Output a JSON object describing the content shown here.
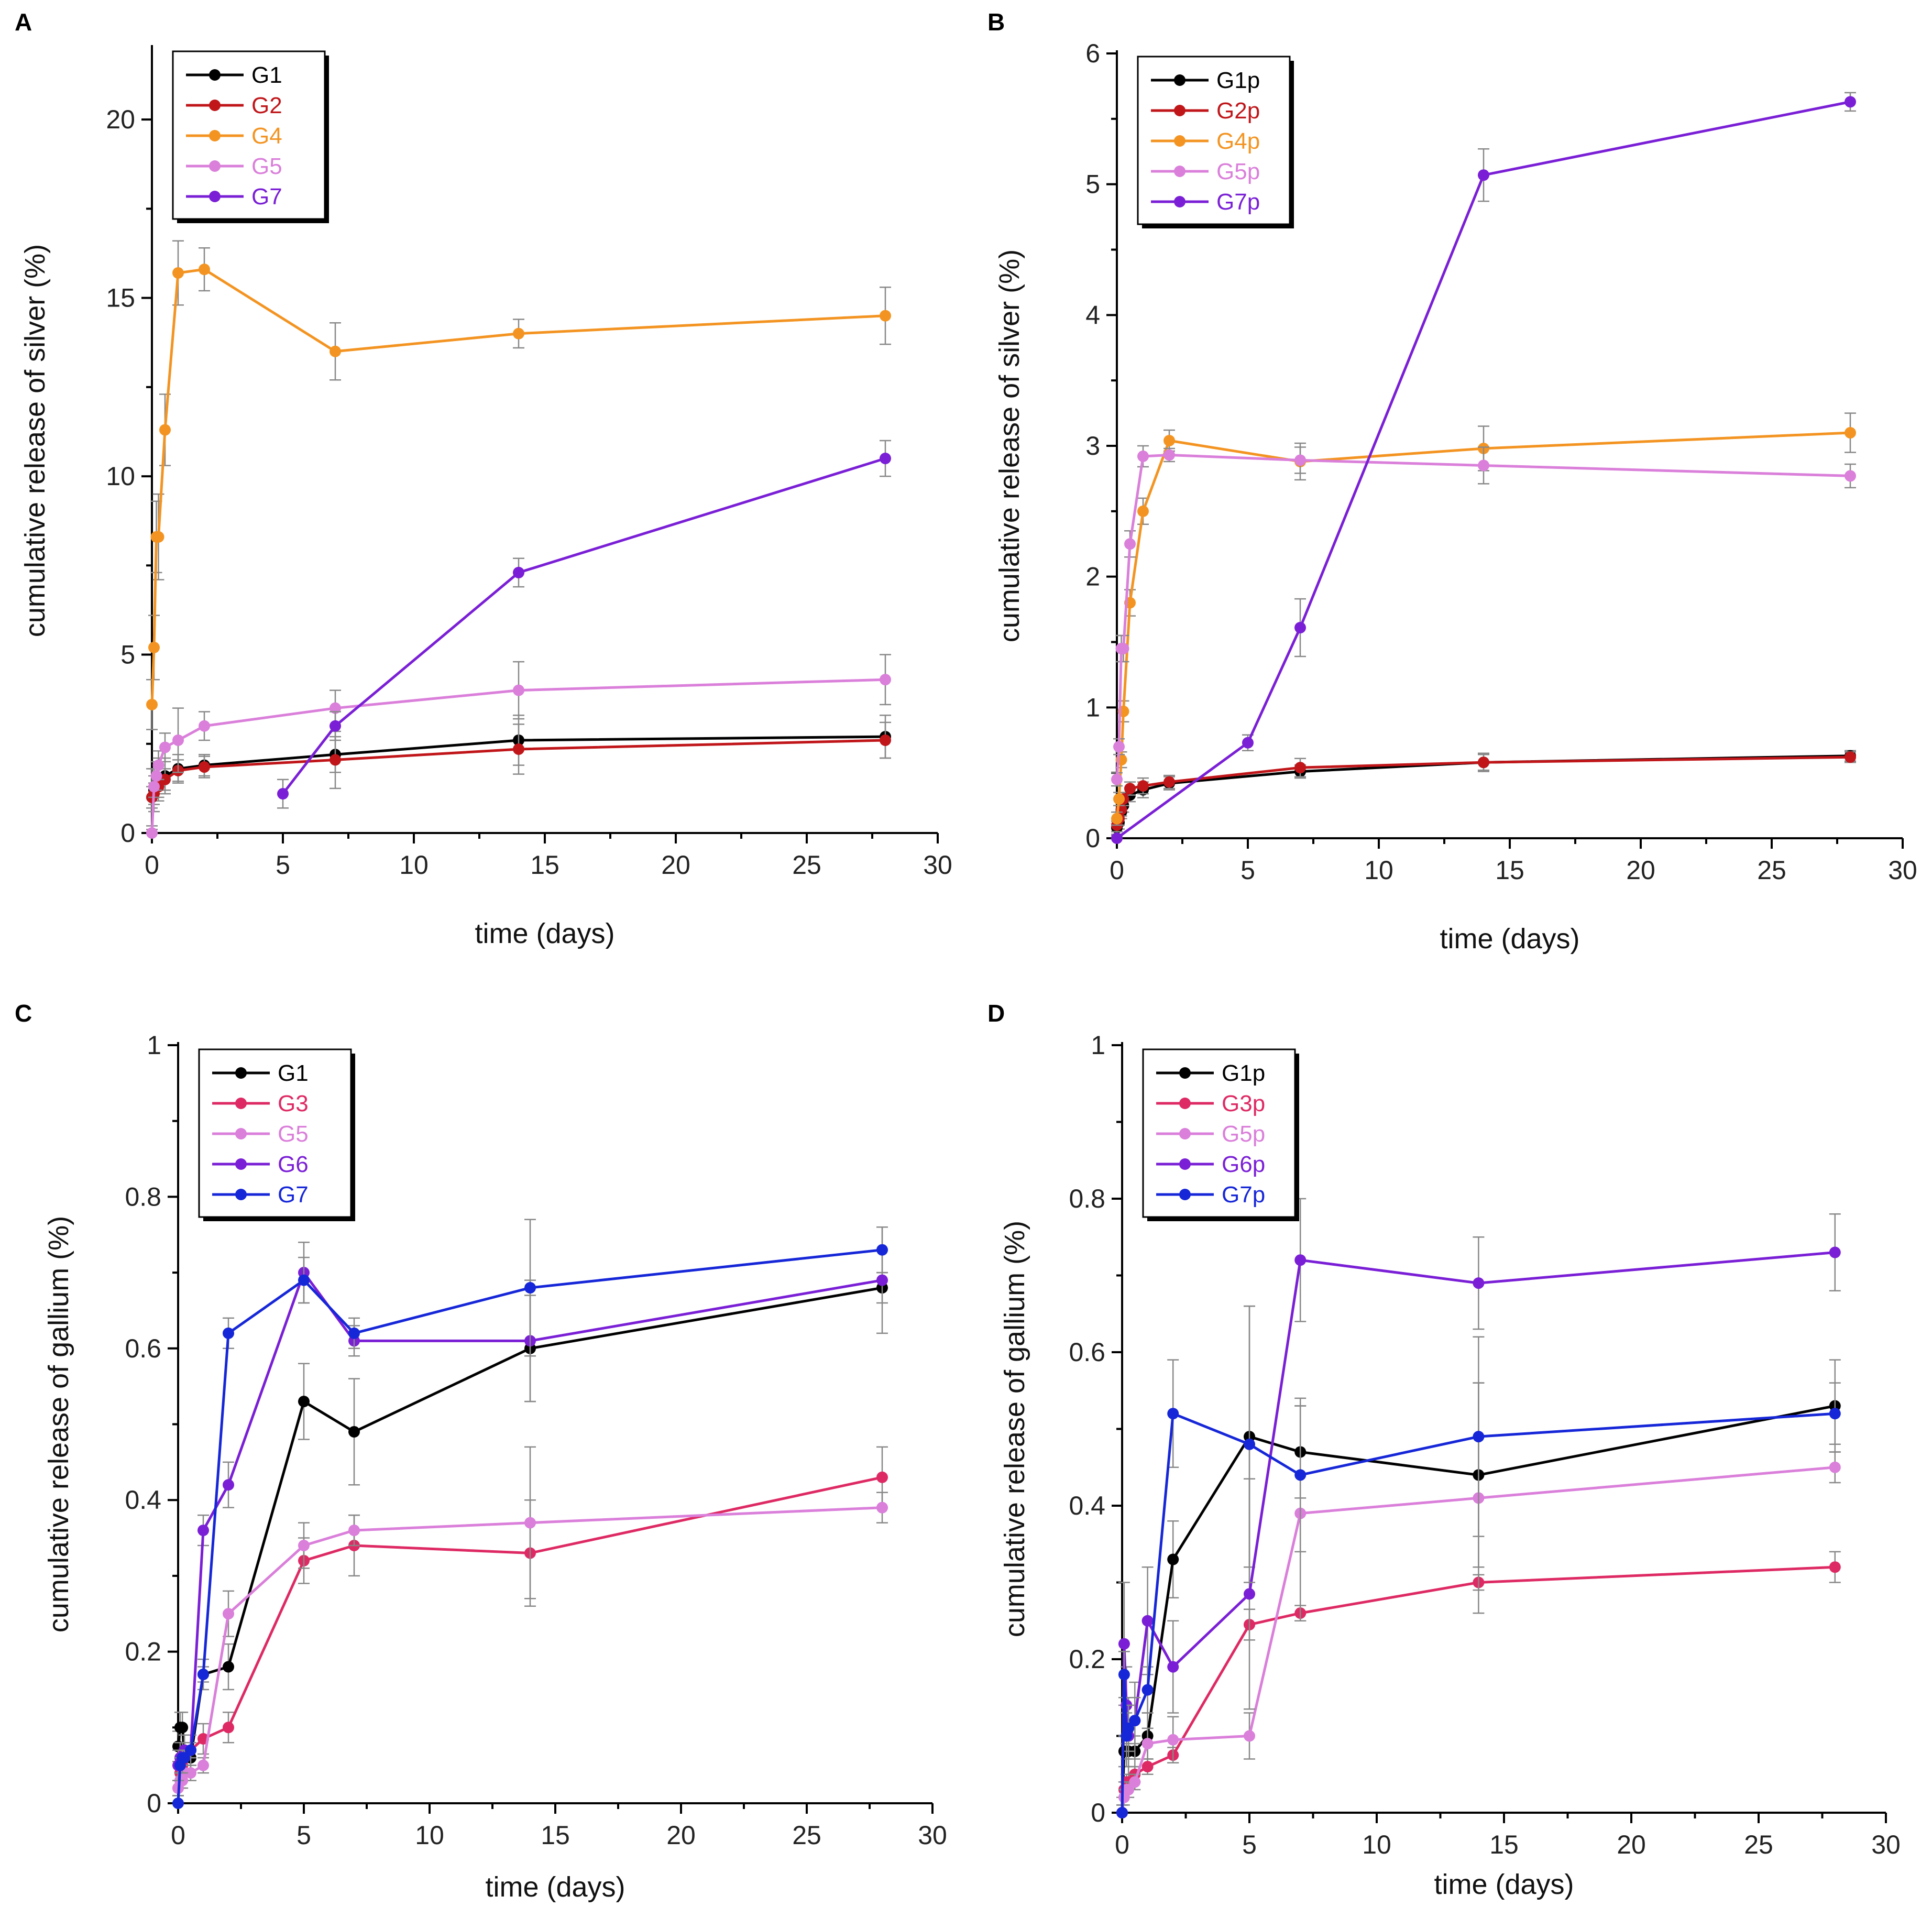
{
  "chart_data": [
    {
      "panel": "A",
      "type": "line",
      "xlabel": "time (days)",
      "ylabel": "cumulative release of silver (%)",
      "xlim": [
        0,
        30
      ],
      "ylim": [
        0,
        22
      ],
      "xticks": [
        0,
        5,
        10,
        15,
        20,
        25,
        30
      ],
      "yticks": [
        0,
        5,
        10,
        15,
        20
      ],
      "legend": "top-left",
      "series": [
        {
          "name": "G1",
          "color": "#000000",
          "x": [
            0,
            0.08,
            0.25,
            0.5,
            1,
            2,
            7,
            14,
            28
          ],
          "y": [
            1.0,
            1.2,
            1.5,
            1.6,
            1.8,
            1.9,
            2.2,
            2.6,
            2.7
          ],
          "err": [
            0.8,
            0.6,
            0.6,
            0.5,
            0.4,
            0.3,
            0.5,
            0.7,
            0.6
          ]
        },
        {
          "name": "G2",
          "color": "#c0161a",
          "x": [
            0,
            0.08,
            0.25,
            0.5,
            1,
            2,
            7,
            14,
            28
          ],
          "y": [
            1.0,
            1.1,
            1.3,
            1.5,
            1.75,
            1.85,
            2.05,
            2.35,
            2.6
          ],
          "err": [
            0.3,
            0.3,
            0.3,
            0.3,
            0.3,
            0.3,
            0.8,
            0.7,
            0.5
          ]
        },
        {
          "name": "G4",
          "color": "#f39422",
          "x": [
            0,
            0.08,
            0.17,
            0.25,
            0.5,
            1,
            2,
            7,
            14,
            28
          ],
          "y": [
            3.6,
            5.2,
            8.3,
            8.3,
            11.3,
            15.7,
            15.8,
            13.5,
            14.0,
            14.5
          ],
          "err": [
            0.7,
            0.9,
            1.0,
            1.2,
            1.0,
            0.9,
            0.6,
            0.8,
            0.4,
            0.8
          ]
        },
        {
          "name": "G5",
          "color": "#da7fda",
          "x": [
            0,
            0.08,
            0.17,
            0.25,
            0.5,
            1,
            2,
            7,
            14,
            28
          ],
          "y": [
            0.0,
            1.3,
            1.6,
            1.9,
            2.4,
            2.6,
            3.0,
            3.5,
            4.0,
            4.3
          ],
          "err": [
            0.1,
            0.3,
            0.4,
            0.4,
            0.4,
            0.9,
            0.4,
            0.5,
            0.8,
            0.7
          ]
        },
        {
          "name": "G7",
          "color": "#7a1fd6",
          "x": [
            5,
            7,
            14,
            28
          ],
          "y": [
            1.1,
            3.0,
            7.3,
            10.5
          ],
          "err": [
            0.4,
            0.4,
            0.4,
            0.5
          ]
        }
      ]
    },
    {
      "panel": "B",
      "type": "line",
      "xlabel": "time (days)",
      "ylabel": "cumulative release of silver (%)",
      "xlim": [
        0,
        30
      ],
      "ylim": [
        0,
        6
      ],
      "xticks": [
        0,
        5,
        10,
        15,
        20,
        25,
        30
      ],
      "yticks": [
        0,
        1,
        2,
        3,
        4,
        5,
        6
      ],
      "legend": "top-left",
      "series": [
        {
          "name": "G1p",
          "color": "#000000",
          "x": [
            0,
            0.08,
            0.17,
            0.25,
            0.5,
            1,
            2,
            7,
            14,
            28
          ],
          "y": [
            0.08,
            0.12,
            0.2,
            0.25,
            0.33,
            0.37,
            0.42,
            0.51,
            0.58,
            0.63
          ],
          "err": [
            0.05,
            0.05,
            0.05,
            0.05,
            0.05,
            0.06,
            0.05,
            0.05,
            0.06,
            0.04
          ]
        },
        {
          "name": "G2p",
          "color": "#c0161a",
          "x": [
            0,
            0.08,
            0.17,
            0.25,
            0.5,
            1,
            2,
            7,
            14,
            28
          ],
          "y": [
            0.1,
            0.15,
            0.22,
            0.3,
            0.38,
            0.4,
            0.43,
            0.54,
            0.58,
            0.62
          ],
          "err": [
            0.05,
            0.05,
            0.05,
            0.05,
            0.05,
            0.06,
            0.05,
            0.07,
            0.07,
            0.04
          ]
        },
        {
          "name": "G4p",
          "color": "#f39422",
          "x": [
            0,
            0.08,
            0.17,
            0.25,
            0.5,
            1,
            2,
            7,
            14,
            28
          ],
          "y": [
            0.15,
            0.3,
            0.6,
            0.97,
            1.8,
            2.5,
            3.04,
            2.88,
            2.98,
            3.1
          ],
          "err": [
            0.05,
            0.05,
            0.06,
            0.08,
            0.1,
            0.1,
            0.08,
            0.14,
            0.17,
            0.15
          ]
        },
        {
          "name": "G5p",
          "color": "#da7fda",
          "x": [
            0,
            0.08,
            0.17,
            0.25,
            0.5,
            1,
            2,
            7,
            14,
            28
          ],
          "y": [
            0.45,
            0.7,
            1.45,
            1.45,
            2.25,
            2.92,
            2.93,
            2.89,
            2.85,
            2.77
          ],
          "err": [
            0.05,
            0.06,
            0.1,
            0.1,
            0.1,
            0.08,
            0.05,
            0.1,
            0.14,
            0.09
          ]
        },
        {
          "name": "G7p",
          "color": "#7a1fd6",
          "x": [
            0,
            5,
            7,
            14,
            28
          ],
          "y": [
            0.0,
            0.73,
            1.61,
            5.07,
            5.63
          ],
          "err": [
            0.02,
            0.06,
            0.22,
            0.2,
            0.07
          ]
        }
      ]
    },
    {
      "panel": "C",
      "type": "line",
      "xlabel": "time (days)",
      "ylabel": "cumulative release of gallium (%)",
      "xlim": [
        0,
        30
      ],
      "ylim": [
        0,
        1
      ],
      "xticks": [
        0,
        5,
        10,
        15,
        20,
        25,
        30
      ],
      "yticks": [
        0,
        0.2,
        0.4,
        0.6,
        0.8,
        1
      ],
      "legend": "top-left",
      "series": [
        {
          "name": "G1",
          "color": "#000000",
          "x": [
            0,
            0.08,
            0.17,
            0.25,
            0.5,
            1,
            2,
            5,
            7,
            14,
            28
          ],
          "y": [
            0.075,
            0.1,
            0.1,
            0.07,
            0.06,
            0.17,
            0.18,
            0.53,
            0.49,
            0.6,
            0.68
          ],
          "err": [
            0.02,
            0.02,
            0.02,
            0.02,
            0.02,
            0.02,
            0.03,
            0.05,
            0.07,
            0.07,
            0.02
          ]
        },
        {
          "name": "G3",
          "color": "#de2a64",
          "x": [
            0,
            0.08,
            0.17,
            0.25,
            0.5,
            1,
            2,
            5,
            7,
            14,
            28
          ],
          "y": [
            0.02,
            0.04,
            0.05,
            0.06,
            0.07,
            0.085,
            0.1,
            0.32,
            0.34,
            0.33,
            0.43
          ],
          "err": [
            0.01,
            0.01,
            0.01,
            0.01,
            0.01,
            0.02,
            0.02,
            0.03,
            0.04,
            0.07,
            0.04
          ]
        },
        {
          "name": "G5",
          "color": "#da7fda",
          "x": [
            0,
            0.08,
            0.17,
            0.25,
            0.5,
            1,
            2,
            5,
            7,
            14,
            28
          ],
          "y": [
            0.02,
            0.03,
            0.03,
            0.04,
            0.04,
            0.05,
            0.25,
            0.34,
            0.36,
            0.37,
            0.39
          ],
          "err": [
            0.01,
            0.01,
            0.01,
            0.01,
            0.01,
            0.01,
            0.03,
            0.03,
            0.02,
            0.1,
            0.02
          ]
        },
        {
          "name": "G6",
          "color": "#7a1fd6",
          "x": [
            0,
            0.08,
            0.17,
            0.25,
            0.5,
            1,
            2,
            5,
            7,
            14,
            28
          ],
          "y": [
            0.05,
            0.06,
            0.06,
            0.07,
            0.07,
            0.36,
            0.42,
            0.7,
            0.61,
            0.61,
            0.69
          ],
          "err": [
            0.02,
            0.02,
            0.02,
            0.02,
            0.02,
            0.02,
            0.03,
            0.04,
            0.02,
            0.08,
            0.07
          ]
        },
        {
          "name": "G7",
          "color": "#1627d8",
          "x": [
            0,
            0.08,
            0.17,
            0.25,
            0.5,
            1,
            2,
            5,
            7,
            14,
            28
          ],
          "y": [
            0.0,
            0.05,
            0.06,
            0.06,
            0.07,
            0.17,
            0.62,
            0.69,
            0.62,
            0.68,
            0.73
          ],
          "err": [
            0.01,
            0.01,
            0.01,
            0.01,
            0.01,
            0.01,
            0.02,
            0.03,
            0.02,
            0.09,
            0.03
          ]
        }
      ]
    },
    {
      "panel": "D",
      "type": "line",
      "xlabel": "time (days)",
      "ylabel": "cumulative release of gallium (%)",
      "xlim": [
        0,
        30
      ],
      "ylim": [
        0,
        1
      ],
      "xticks": [
        0,
        5,
        10,
        15,
        20,
        25,
        30
      ],
      "yticks": [
        0,
        0.2,
        0.4,
        0.6,
        0.8,
        1
      ],
      "legend": "top-left",
      "series": [
        {
          "name": "G1p",
          "color": "#000000",
          "x": [
            0,
            0.08,
            0.17,
            0.25,
            0.5,
            1,
            2,
            5,
            7,
            14,
            28
          ],
          "y": [
            0.0,
            0.08,
            0.08,
            0.08,
            0.08,
            0.1,
            0.33,
            0.49,
            0.47,
            0.44,
            0.53
          ],
          "err": [
            0.02,
            0.02,
            0.02,
            0.02,
            0.02,
            0.03,
            0.05,
            0.17,
            0.06,
            0.12,
            0.06
          ]
        },
        {
          "name": "G3p",
          "color": "#de2a64",
          "x": [
            0,
            0.08,
            0.17,
            0.25,
            0.5,
            1,
            2,
            5,
            7,
            14,
            28
          ],
          "y": [
            0.0,
            0.03,
            0.04,
            0.04,
            0.05,
            0.06,
            0.075,
            0.245,
            0.26,
            0.3,
            0.32
          ],
          "err": [
            0.01,
            0.01,
            0.01,
            0.01,
            0.01,
            0.01,
            0.01,
            0.02,
            0.01,
            0.01,
            0.02
          ]
        },
        {
          "name": "G5p",
          "color": "#da7fda",
          "x": [
            0,
            0.08,
            0.17,
            0.25,
            0.5,
            1,
            2,
            5,
            7,
            14,
            28
          ],
          "y": [
            0.0,
            0.02,
            0.03,
            0.03,
            0.04,
            0.09,
            0.095,
            0.1,
            0.39,
            0.41,
            0.45
          ],
          "err": [
            0.01,
            0.01,
            0.01,
            0.01,
            0.01,
            0.02,
            0.03,
            0.03,
            0.14,
            0.15,
            0.02
          ]
        },
        {
          "name": "G6p",
          "color": "#7a1fd6",
          "x": [
            0,
            0.08,
            0.17,
            0.25,
            0.5,
            1,
            2,
            5,
            7,
            14,
            28
          ],
          "y": [
            0.0,
            0.22,
            0.14,
            0.1,
            0.12,
            0.25,
            0.19,
            0.285,
            0.72,
            0.69,
            0.73
          ],
          "err": [
            0.01,
            0.08,
            0.05,
            0.05,
            0.05,
            0.07,
            0.06,
            0.15,
            0.08,
            0.06,
            0.05
          ]
        },
        {
          "name": "G7p",
          "color": "#1627d8",
          "x": [
            0,
            0.08,
            0.17,
            0.25,
            0.5,
            1,
            2,
            5,
            7,
            14,
            28
          ],
          "y": [
            0.0,
            0.18,
            0.1,
            0.11,
            0.12,
            0.16,
            0.52,
            0.48,
            0.44,
            0.49,
            0.52
          ],
          "err": [
            0.01,
            0.03,
            0.03,
            0.03,
            0.03,
            0.03,
            0.07,
            0.18,
            0.1,
            0.13,
            0.04
          ]
        }
      ]
    }
  ]
}
